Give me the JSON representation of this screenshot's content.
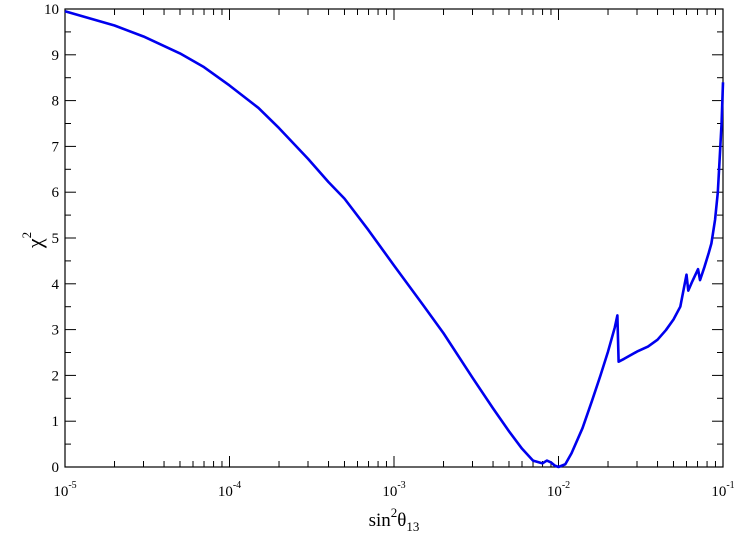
{
  "chart_data": {
    "type": "line",
    "title": "",
    "xlabel": {
      "main": "sin",
      "sup": "2",
      "greek": "θ",
      "sub": "13"
    },
    "ylabel": {
      "main": "χ",
      "sup": "2"
    },
    "x_scale": "log",
    "xlim": [
      1e-05,
      0.1
    ],
    "ylim": [
      0,
      10
    ],
    "grid": false,
    "legend": "none",
    "line_color": "#0000ee",
    "x_ticks": [
      {
        "base": "10",
        "exp": "-5"
      },
      {
        "base": "10",
        "exp": "-4"
      },
      {
        "base": "10",
        "exp": "-3"
      },
      {
        "base": "10",
        "exp": "-2"
      },
      {
        "base": "10",
        "exp": "-1"
      }
    ],
    "y_ticks": [
      "0",
      "1",
      "2",
      "3",
      "4",
      "5",
      "6",
      "7",
      "8",
      "9",
      "10"
    ],
    "series": [
      {
        "points": [
          [
            1e-05,
            9.95
          ],
          [
            2e-05,
            9.64
          ],
          [
            3e-05,
            9.4
          ],
          [
            5e-05,
            9.03
          ],
          [
            7e-05,
            8.73
          ],
          [
            0.0001,
            8.33
          ],
          [
            0.00015,
            7.84
          ],
          [
            0.0002,
            7.4
          ],
          [
            0.0003,
            6.73
          ],
          [
            0.0004,
            6.22
          ],
          [
            0.0005,
            5.86
          ],
          [
            0.0007,
            5.17
          ],
          [
            0.001,
            4.4
          ],
          [
            0.0015,
            3.54
          ],
          [
            0.002,
            2.92
          ],
          [
            0.003,
            1.95
          ],
          [
            0.004,
            1.28
          ],
          [
            0.005,
            0.78
          ],
          [
            0.006,
            0.4
          ],
          [
            0.007,
            0.14
          ],
          [
            0.008,
            0.08
          ],
          [
            0.0085,
            0.14
          ],
          [
            0.009,
            0.1
          ],
          [
            0.0095,
            0.03
          ],
          [
            0.01,
            0.0
          ],
          [
            0.011,
            0.06
          ],
          [
            0.012,
            0.3
          ],
          [
            0.014,
            0.85
          ],
          [
            0.016,
            1.45
          ],
          [
            0.018,
            2.0
          ],
          [
            0.02,
            2.52
          ],
          [
            0.022,
            3.05
          ],
          [
            0.0228,
            3.31
          ],
          [
            0.0232,
            2.3
          ],
          [
            0.025,
            2.36
          ],
          [
            0.03,
            2.52
          ],
          [
            0.035,
            2.63
          ],
          [
            0.04,
            2.78
          ],
          [
            0.045,
            2.99
          ],
          [
            0.05,
            3.22
          ],
          [
            0.055,
            3.5
          ],
          [
            0.06,
            4.2
          ],
          [
            0.0615,
            3.85
          ],
          [
            0.065,
            4.05
          ],
          [
            0.0705,
            4.32
          ],
          [
            0.0725,
            4.08
          ],
          [
            0.077,
            4.36
          ],
          [
            0.082,
            4.68
          ],
          [
            0.085,
            4.88
          ],
          [
            0.0895,
            5.4
          ],
          [
            0.093,
            6.0
          ],
          [
            0.096,
            6.9
          ],
          [
            0.098,
            7.5
          ],
          [
            0.1,
            8.4
          ]
        ]
      }
    ]
  }
}
